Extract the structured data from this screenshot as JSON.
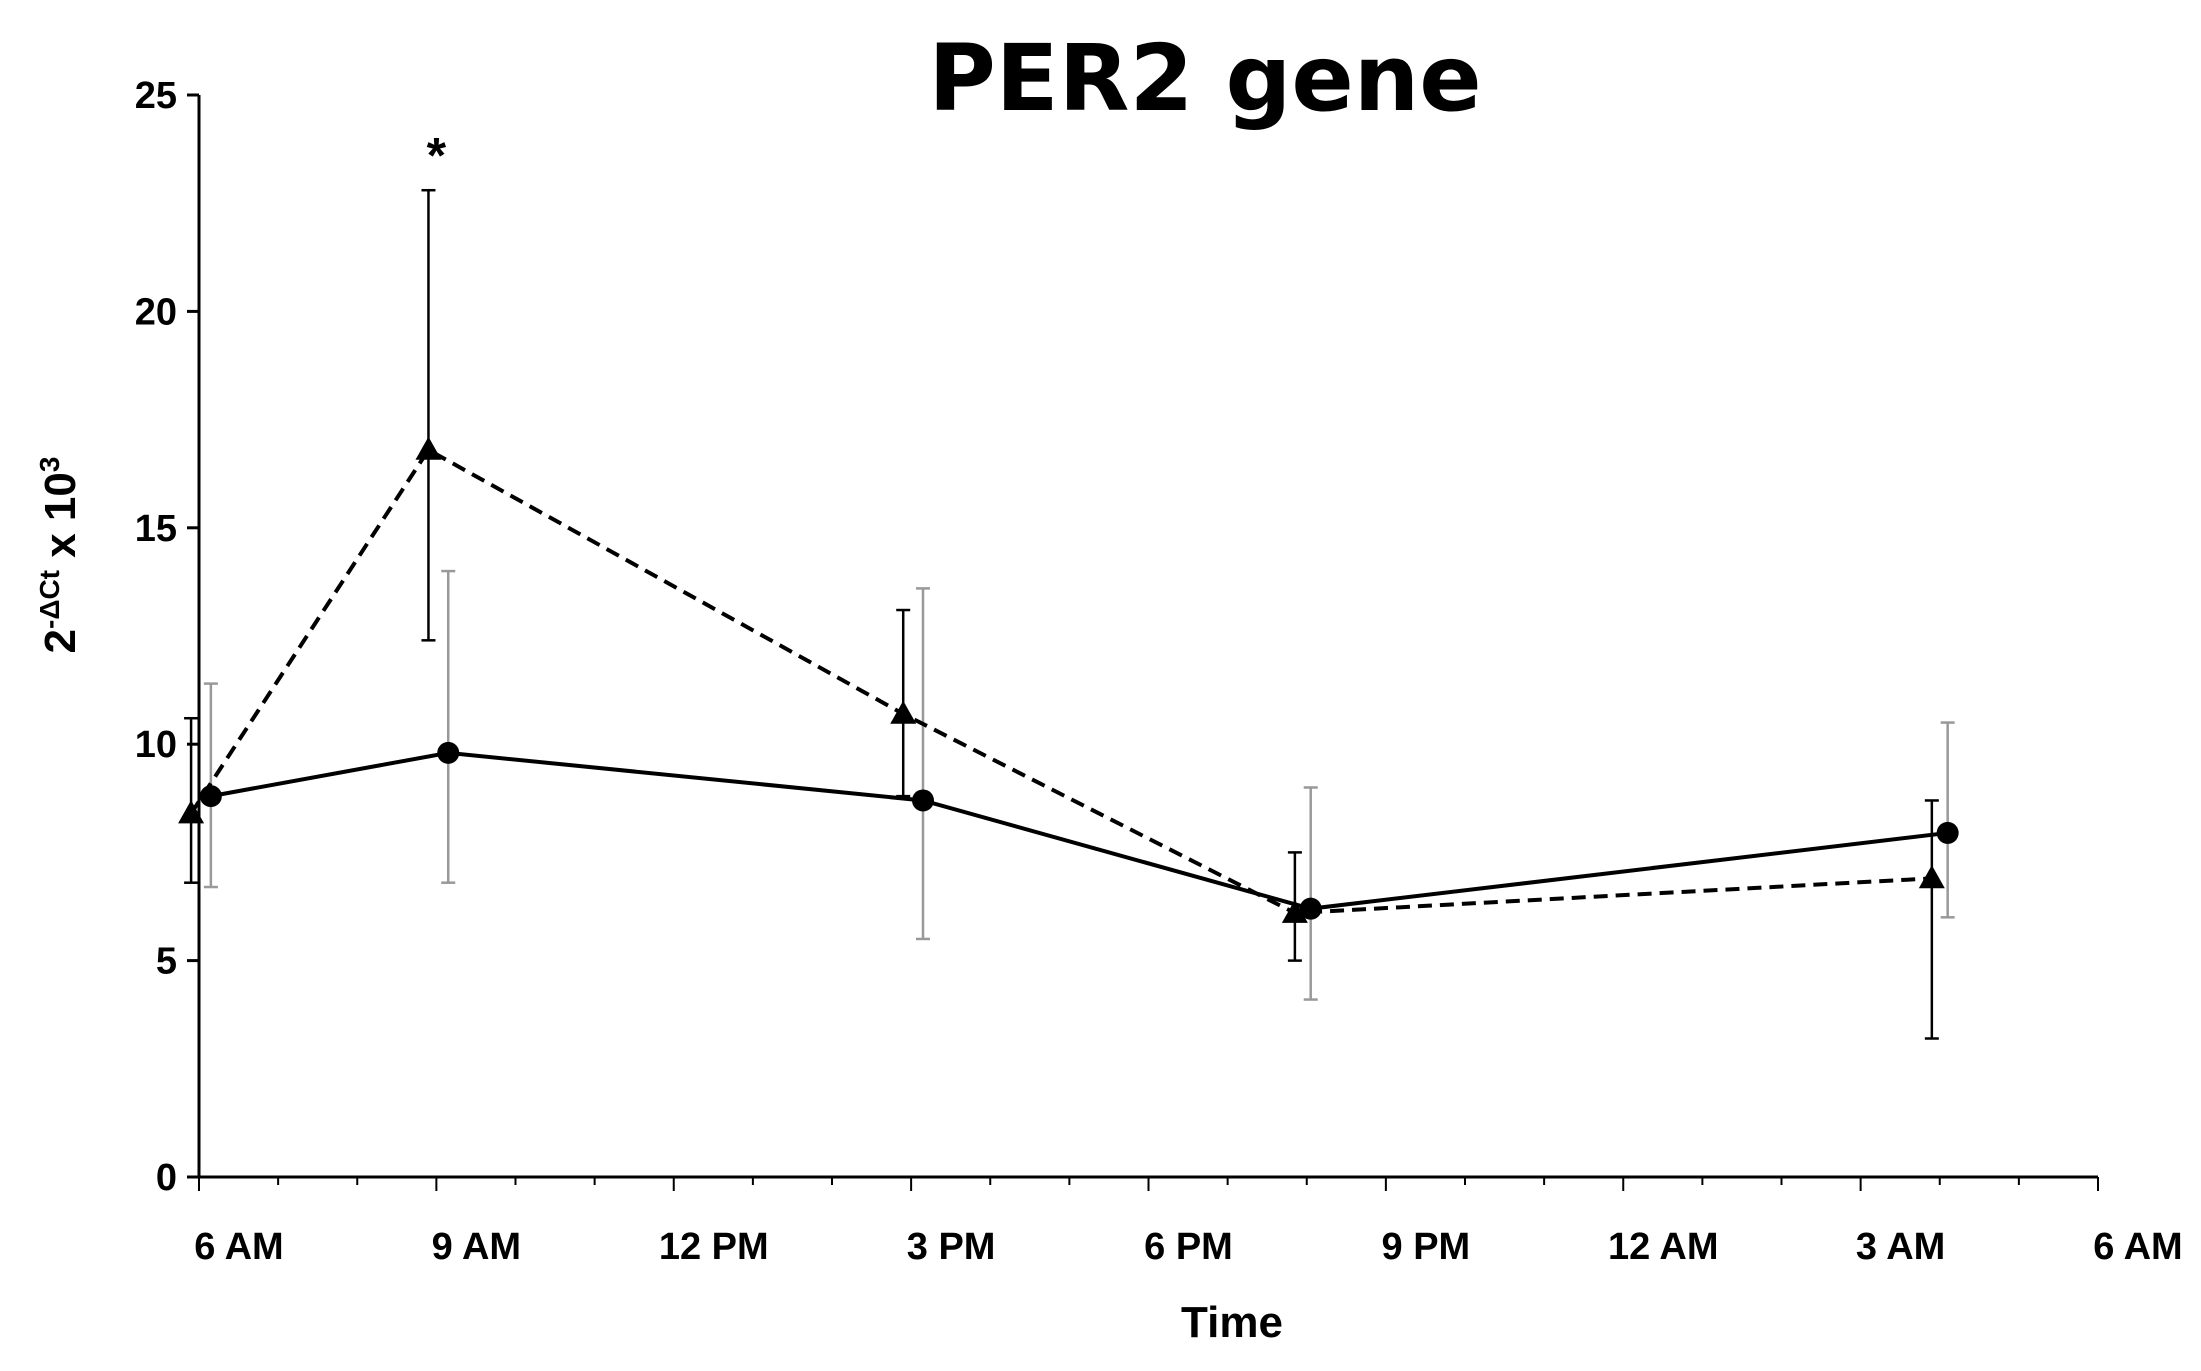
{
  "chart_data": {
    "type": "line",
    "title": "PER2 gene",
    "xlabel": "Time",
    "ylabel": {
      "base": "2",
      "sup1": "-ΔCt",
      "mid": " x 10",
      "sup2": "3"
    },
    "ylim": [
      0,
      25
    ],
    "yticks": [
      0,
      5,
      10,
      15,
      20,
      25
    ],
    "xlim": [
      0,
      24
    ],
    "xticks": [
      {
        "x": 0,
        "label": "6 AM"
      },
      {
        "x": 3,
        "label": "9 AM"
      },
      {
        "x": 6,
        "label": "12 PM"
      },
      {
        "x": 9,
        "label": "3 PM"
      },
      {
        "x": 12,
        "label": "6 PM"
      },
      {
        "x": 15,
        "label": "9 PM"
      },
      {
        "x": 18,
        "label": "12 AM"
      },
      {
        "x": 21,
        "label": "3 AM"
      },
      {
        "x": 24,
        "label": "6 AM"
      }
    ],
    "series": [
      {
        "name": "triangle-dashed",
        "marker": "triangle",
        "line": "dashed",
        "error_color": "#000000",
        "points": [
          {
            "x": -0.1,
            "y": 8.4,
            "err_low": 6.8,
            "err_high": 10.6
          },
          {
            "x": 2.9,
            "y": 16.8,
            "err_low": 12.4,
            "err_high": 22.8
          },
          {
            "x": 8.9,
            "y": 10.7,
            "err_low": 8.8,
            "err_high": 13.1
          },
          {
            "x": 13.85,
            "y": 6.1,
            "err_low": 5.0,
            "err_high": 7.5
          },
          {
            "x": 21.9,
            "y": 6.9,
            "err_low": 3.2,
            "err_high": 8.7
          }
        ]
      },
      {
        "name": "circle-solid",
        "marker": "circle",
        "line": "solid",
        "error_color": "#999999",
        "points": [
          {
            "x": 0.15,
            "y": 8.8,
            "err_low": 6.7,
            "err_high": 11.4
          },
          {
            "x": 3.15,
            "y": 9.8,
            "err_low": 6.8,
            "err_high": 14.0
          },
          {
            "x": 9.15,
            "y": 8.7,
            "err_low": 5.5,
            "err_high": 13.6
          },
          {
            "x": 14.05,
            "y": 6.2,
            "err_low": 4.1,
            "err_high": 9.0
          },
          {
            "x": 22.1,
            "y": 7.95,
            "err_low": 6.0,
            "err_high": 10.5
          }
        ]
      }
    ],
    "annotations": [
      {
        "text": "*",
        "x": 3.0,
        "y": 23.9
      }
    ]
  }
}
